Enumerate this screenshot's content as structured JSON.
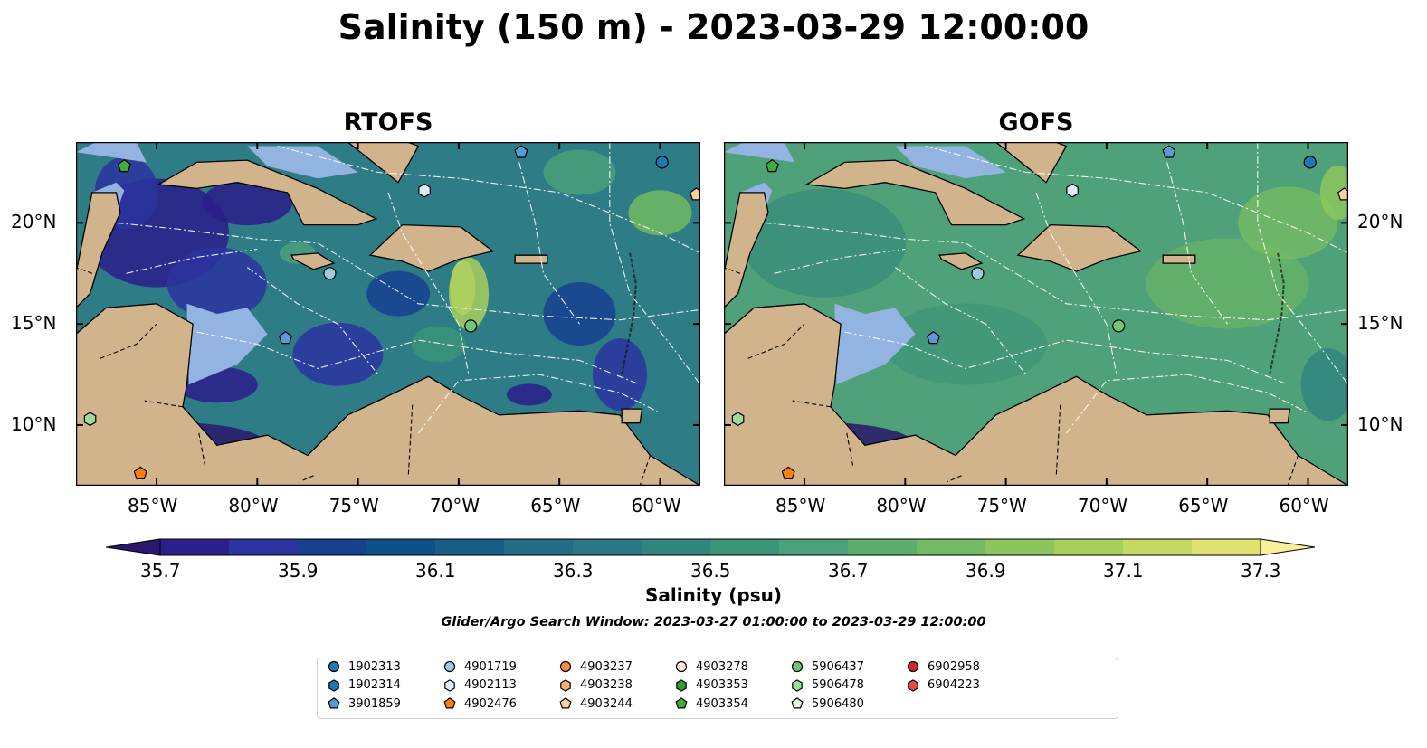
{
  "title": "Salinity (150 m) - 2023-03-29 12:00:00",
  "panels": [
    {
      "title": "RTOFS",
      "model": "rtofs"
    },
    {
      "title": "GOFS",
      "model": "gofs"
    }
  ],
  "axes": {
    "lon_ticks": [
      "85°W",
      "80°W",
      "75°W",
      "70°W",
      "65°W",
      "60°W"
    ],
    "lat_ticks": [
      "20°N",
      "15°N",
      "10°N"
    ],
    "lon_range": [
      -89,
      -58
    ],
    "lat_range": [
      7,
      24
    ]
  },
  "colorbar": {
    "label": "Salinity (psu)",
    "ticks": [
      "35.7",
      "35.9",
      "36.1",
      "36.3",
      "36.5",
      "36.7",
      "36.9",
      "37.1",
      "37.3"
    ],
    "range": [
      35.7,
      37.3
    ],
    "extend": "both",
    "colormap": "haline",
    "colors": [
      "#2a186c",
      "#2c1f8a",
      "#2b34a0",
      "#16418f",
      "#0f5088",
      "#195e86",
      "#236b86",
      "#2a7886",
      "#32857f",
      "#3b9378",
      "#4aa07a",
      "#5cad6e",
      "#72ba63",
      "#8cc55d",
      "#a8cf5c",
      "#c5d962",
      "#dfe26f",
      "#fdef9a"
    ]
  },
  "search_window": "Glider/Argo Search Window: 2023-03-27 01:00:00 to 2023-03-29 12:00:00",
  "land_color": "#d2b48c",
  "shallow_color": "#93b4e0",
  "floats": [
    {
      "id": "1902313",
      "marker": "circle",
      "color": "#1f77b4"
    },
    {
      "id": "1902314",
      "marker": "hexagon",
      "color": "#1f77b4"
    },
    {
      "id": "3901859",
      "marker": "pentagon",
      "color": "#5b9bd5"
    },
    {
      "id": "4901719",
      "marker": "circle",
      "color": "#9ecae1"
    },
    {
      "id": "4902113",
      "marker": "hexagon",
      "color": "#deebf7"
    },
    {
      "id": "4902476",
      "marker": "pentagon",
      "color": "#ff7f0e"
    },
    {
      "id": "4903237",
      "marker": "circle",
      "color": "#fd8d3c"
    },
    {
      "id": "4903238",
      "marker": "hexagon",
      "color": "#fdae6b"
    },
    {
      "id": "4903244",
      "marker": "pentagon",
      "color": "#fdd0a2"
    },
    {
      "id": "4903278",
      "marker": "circle",
      "color": "#feeddb"
    },
    {
      "id": "4903353",
      "marker": "hexagon",
      "color": "#2ca02c"
    },
    {
      "id": "4903354",
      "marker": "pentagon",
      "color": "#41ab3d"
    },
    {
      "id": "5906437",
      "marker": "circle",
      "color": "#74c476"
    },
    {
      "id": "5906478",
      "marker": "hexagon",
      "color": "#a1d99b"
    },
    {
      "id": "5906480",
      "marker": "pentagon",
      "color": "#e5f5e0"
    },
    {
      "id": "6902958",
      "marker": "circle",
      "color": "#d62728"
    },
    {
      "id": "6904223",
      "marker": "hexagon",
      "color": "#e34a4a"
    }
  ],
  "map_markers": [
    {
      "id": "4903354",
      "lon": -86.6,
      "lat": 22.8
    },
    {
      "id": "3901859",
      "lon": -66.9,
      "lat": 23.5
    },
    {
      "id": "1902313",
      "lon": -59.9,
      "lat": 23.0
    },
    {
      "id": "4903244",
      "lon": -58.2,
      "lat": 21.4
    },
    {
      "id": "4902113",
      "lon": -71.7,
      "lat": 21.6
    },
    {
      "id": "4901719",
      "lon": -76.4,
      "lat": 17.5
    },
    {
      "id": "3901859",
      "lon": -78.6,
      "lat": 14.3
    },
    {
      "id": "5906437",
      "lon": -69.4,
      "lat": 14.9
    },
    {
      "id": "5906478",
      "lon": -88.3,
      "lat": 10.3
    },
    {
      "id": "4902476",
      "lon": -85.8,
      "lat": 7.6
    }
  ]
}
